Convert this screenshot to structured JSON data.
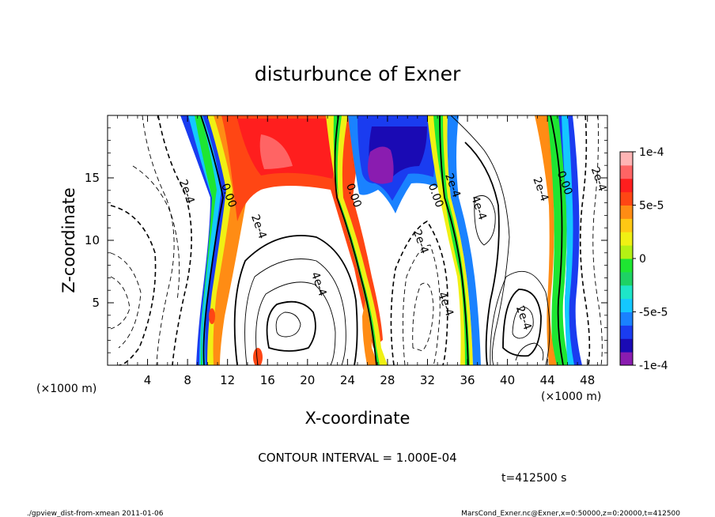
{
  "chart_data": {
    "type": "heatmap",
    "title": "disturbunce of Exner",
    "xlabel": "X-coordinate",
    "ylabel": "Z-coordinate",
    "x_unit": "(×1000 m)",
    "y_unit": "(×1000 m)",
    "xlim": [
      0,
      50
    ],
    "ylim": [
      0,
      20
    ],
    "x_ticks": [
      "4",
      "8",
      "12",
      "16",
      "20",
      "24",
      "28",
      "32",
      "36",
      "40",
      "44",
      "48"
    ],
    "y_ticks": [
      "5",
      "10",
      "15"
    ],
    "colorbar": {
      "range": [
        -0.0001,
        0.0001
      ],
      "tick_labels": [
        "1e-4",
        "5e-5",
        "0",
        "-5e-5",
        "-1e-4"
      ],
      "colors": [
        "#8a1cb0",
        "#1a0ab4",
        "#1a3cf0",
        "#1a82ff",
        "#14c8ff",
        "#1ee6c8",
        "#1ed264",
        "#1ee632",
        "#b4f014",
        "#f0f014",
        "#ffc814",
        "#ff8c14",
        "#ff4614",
        "#ff1e1e",
        "#ff6464",
        "#ffb4b4"
      ]
    },
    "contour_labels": [
      {
        "text": "0.00",
        "x": 11.8,
        "z": 13.5
      },
      {
        "text": "0.00",
        "x": 24.3,
        "z": 13.5
      },
      {
        "text": "0.00",
        "x": 32.5,
        "z": 13.5
      },
      {
        "text": "0.00",
        "x": 45.4,
        "z": 14.5
      },
      {
        "text": "2e-4",
        "x": 7.6,
        "z": 13.8
      },
      {
        "text": "2e-4",
        "x": 14.8,
        "z": 11.0
      },
      {
        "text": "4e-4",
        "x": 20.8,
        "z": 6.4
      },
      {
        "text": "2e-4",
        "x": 31.0,
        "z": 9.8
      },
      {
        "text": "4e-4",
        "x": 33.5,
        "z": 4.8
      },
      {
        "text": "2e-4",
        "x": 34.2,
        "z": 14.3
      },
      {
        "text": "4e-4",
        "x": 36.8,
        "z": 12.5
      },
      {
        "text": "2e-4",
        "x": 43.0,
        "z": 14.0
      },
      {
        "text": "2e-4",
        "x": 41.3,
        "z": 3.7
      },
      {
        "text": "2e-4",
        "x": 48.8,
        "z": 14.8
      }
    ],
    "contour_interval_text": "CONTOUR INTERVAL = 1.000E-04",
    "time_text": "t=412500  s"
  },
  "footer": {
    "left": "./gpview_dist-from-xmean  2011-01-06",
    "right": "MarsCond_Exner.nc@Exner,x=0:50000,z=0:20000,t=412500"
  }
}
